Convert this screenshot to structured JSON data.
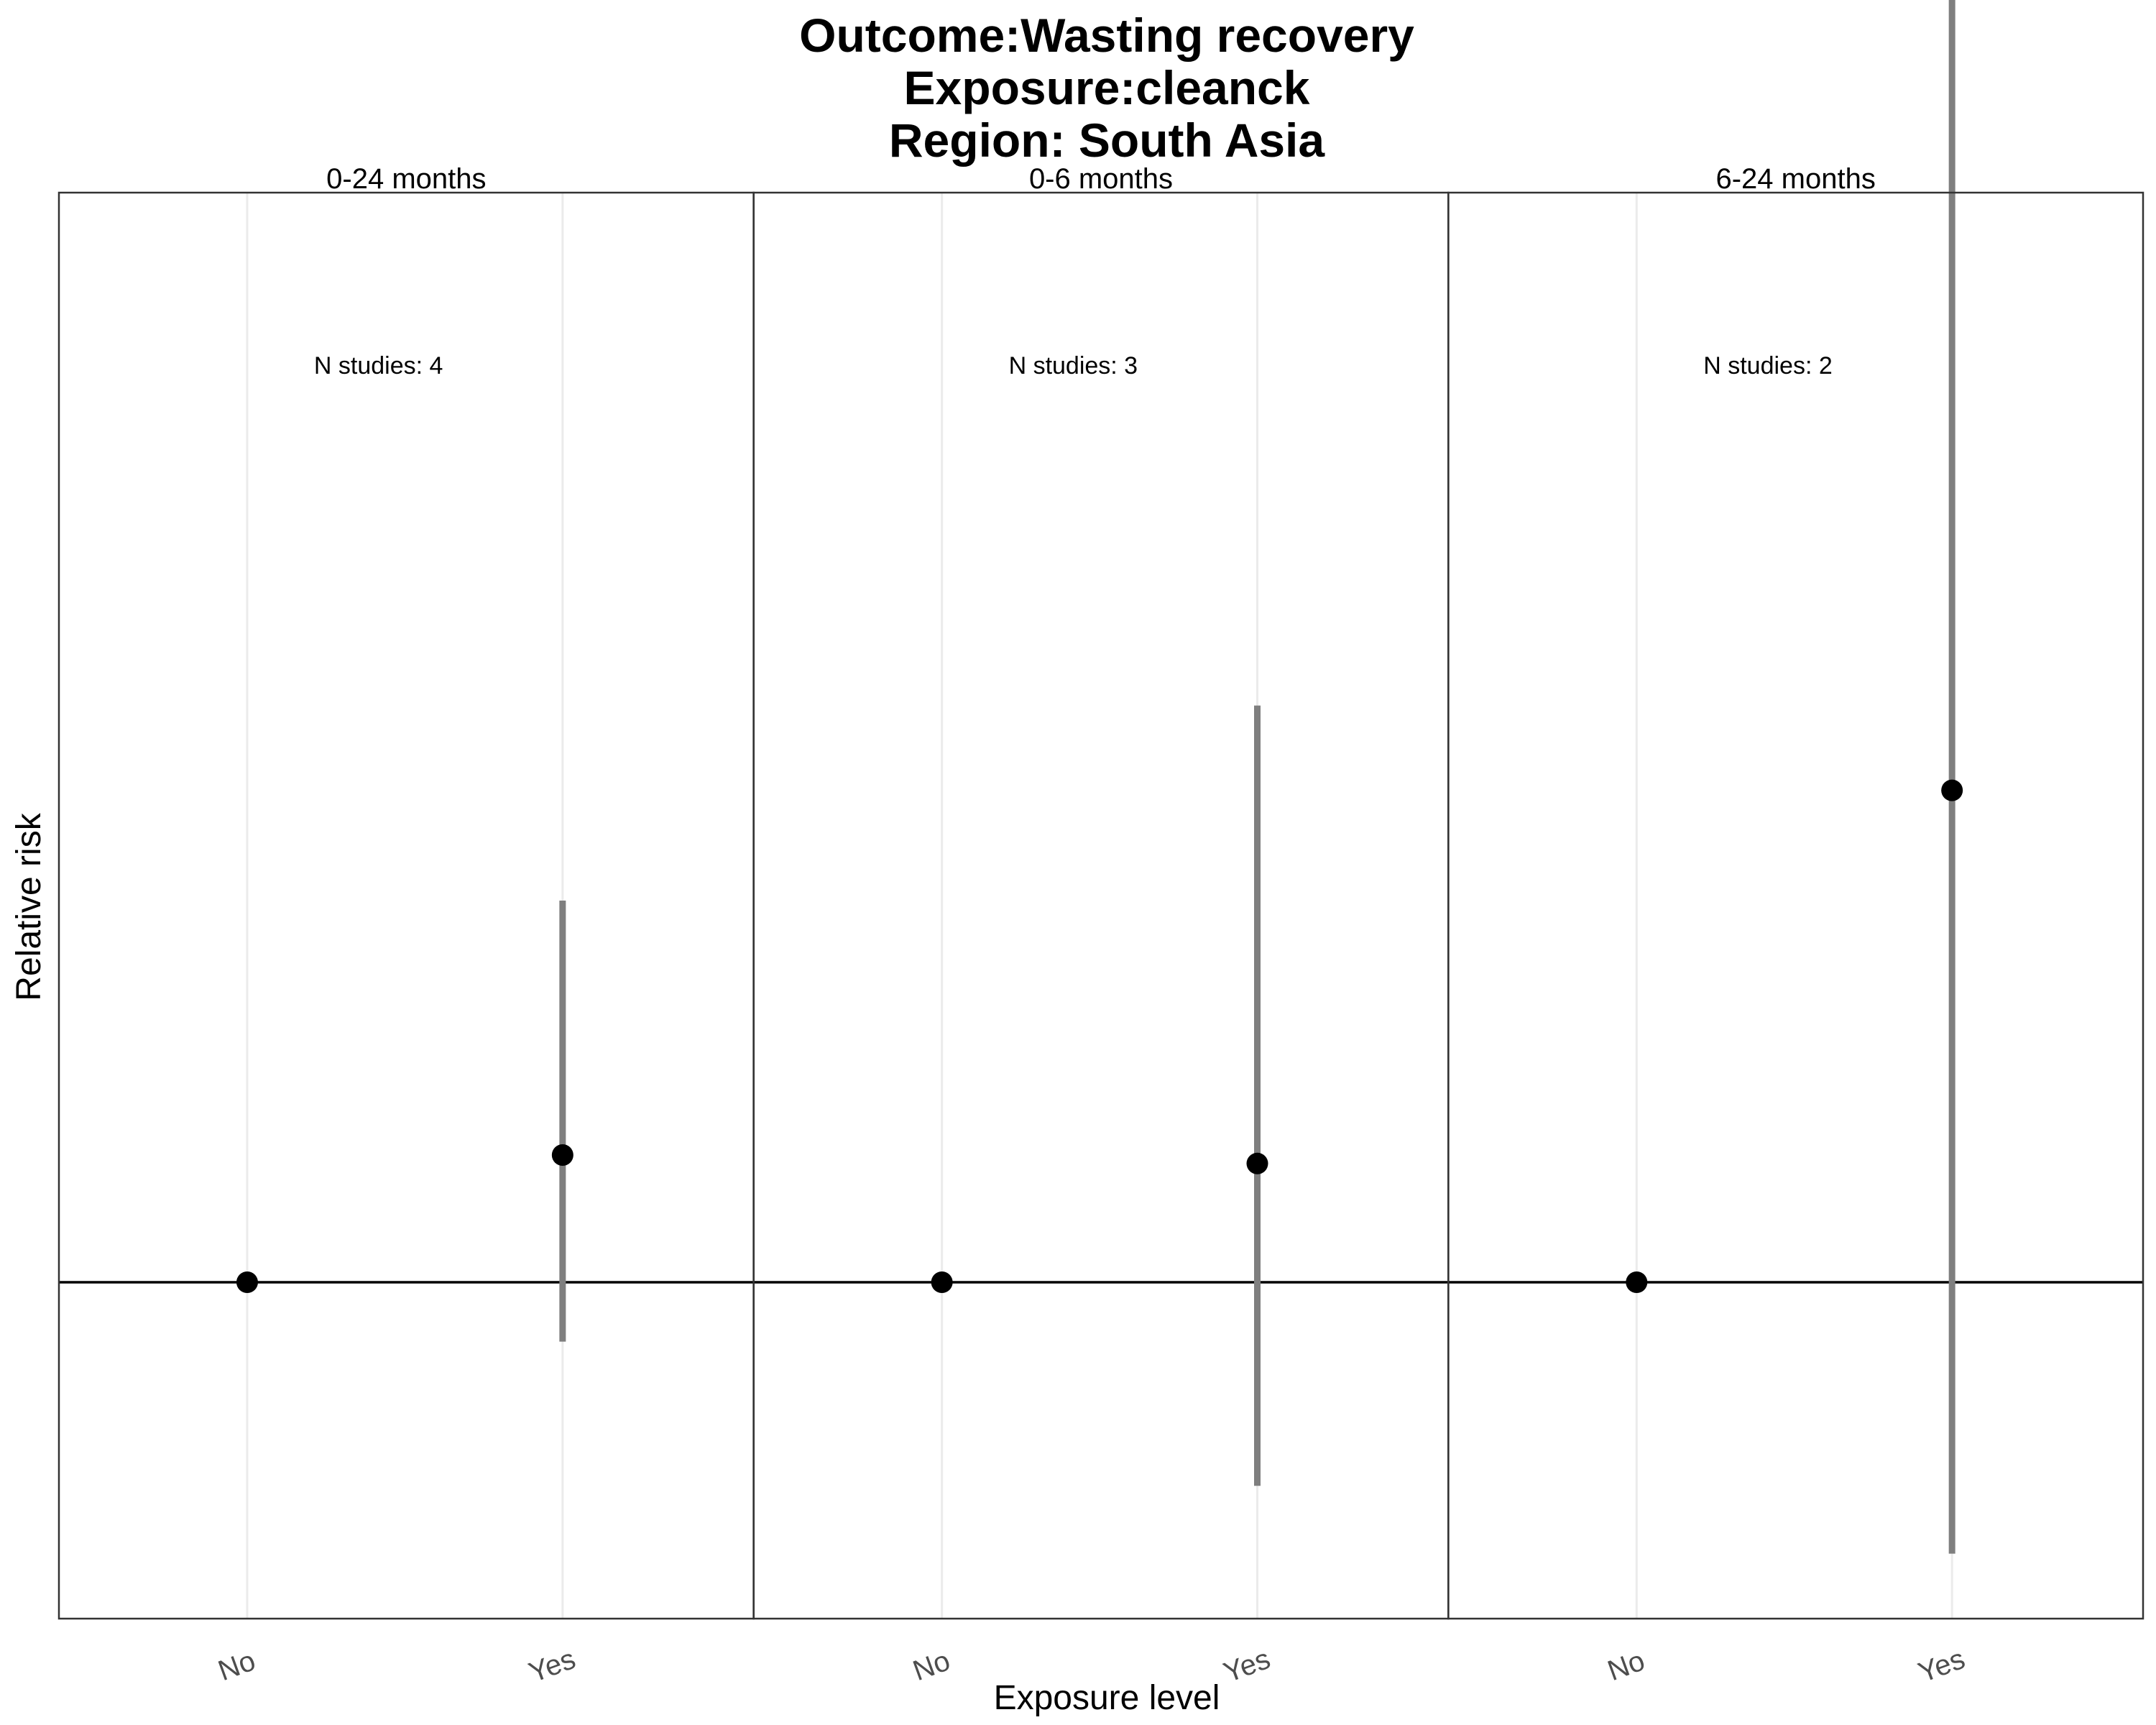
{
  "chart_data": {
    "type": "scatter",
    "title_lines": [
      "Outcome:Wasting recovery",
      "Exposure:cleanck",
      "Region: South Asia"
    ],
    "xlabel": "Exposure level",
    "ylabel": "Relative risk",
    "categories": [
      "No",
      "Yes"
    ],
    "reference_line": 1.0,
    "ylim": [
      0.5,
      3.0
    ],
    "grid": "vertical major only",
    "panels": [
      {
        "label": "0-24 months",
        "annotation": "N studies: 4",
        "points": [
          {
            "x": "No",
            "y": 1.0,
            "lower": 1.0,
            "upper": 1.0
          },
          {
            "x": "Yes",
            "y": 1.15,
            "lower": 0.93,
            "upper": 1.45
          }
        ]
      },
      {
        "label": "0-6 months",
        "annotation": "N studies: 3",
        "points": [
          {
            "x": "No",
            "y": 1.0,
            "lower": 1.0,
            "upper": 1.0
          },
          {
            "x": "Yes",
            "y": 1.14,
            "lower": 0.76,
            "upper": 1.68
          }
        ]
      },
      {
        "label": "6-24 months",
        "annotation": "N studies: 2",
        "points": [
          {
            "x": "No",
            "y": 1.0,
            "lower": 1.0,
            "upper": 1.0
          },
          {
            "x": "Yes",
            "y": 1.58,
            "lower": 0.68,
            "upper": 2.9
          }
        ]
      }
    ],
    "colors": {
      "point": "#000000",
      "errorbar": "#7f7f7f",
      "reference": "#000000",
      "grid": "#ebebeb",
      "border": "#333333"
    }
  }
}
